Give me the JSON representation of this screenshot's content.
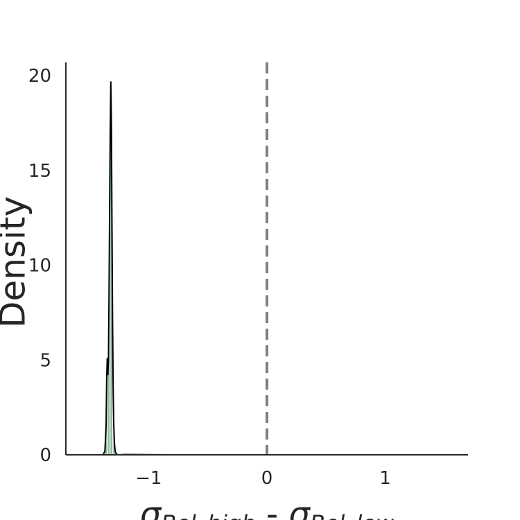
{
  "chart_data": {
    "type": "area",
    "xlabel": {
      "sym1": "σ",
      "sub1": "Bel_high",
      "op": " - ",
      "sym2": "σ",
      "sub2": "Bel_low"
    },
    "ylabel": "Density",
    "xlim": [
      -1.7,
      1.7
    ],
    "ylim": [
      0,
      20.7
    ],
    "xticks": [
      -1,
      0,
      1
    ],
    "xtick_labels": [
      "−1",
      "0",
      "1"
    ],
    "yticks": [
      0,
      5,
      10,
      15,
      20
    ],
    "ytick_labels": [
      "0",
      "5",
      "10",
      "15",
      "20"
    ],
    "grid": false,
    "reference_line": {
      "x": 0,
      "style": "dashed",
      "color": "#808080"
    },
    "fill_color": "#8fbc9f",
    "hatch_color": "#ffffff",
    "density_curve": {
      "color": "#000000",
      "x": [
        -1.385,
        -1.37,
        -1.36,
        -1.355,
        -1.35,
        -1.345,
        -1.34,
        -1.335,
        -1.33,
        -1.325,
        -1.32,
        -1.315,
        -1.31,
        -1.305,
        -1.3,
        -1.295,
        -1.29,
        -1.285,
        -1.28,
        -1.27,
        -1.26,
        -1.25,
        -1.2,
        -1.0,
        -0.8,
        1.7
      ],
      "y": [
        0,
        0.2,
        1.5,
        4.0,
        5.1,
        4.2,
        5.0,
        8.5,
        13.0,
        17.0,
        19.7,
        17.5,
        12.0,
        7.0,
        3.5,
        1.6,
        0.7,
        0.3,
        0.12,
        0.03,
        0.01,
        0,
        0.02,
        0.01,
        0,
        0
      ]
    }
  }
}
